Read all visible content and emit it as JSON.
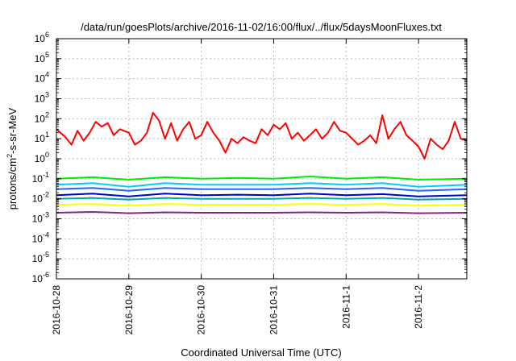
{
  "chart_data": {
    "type": "line",
    "title": "/data/run/goesPlots/archive/2016-11-02/16:00/flux/../flux/5daysMoonFluxes.txt",
    "xlabel": "Coordinated Universal Time (UTC)",
    "ylabel_parts": {
      "base": "protons/cm",
      "sup": "2",
      "rest": "-s-sr-MeV"
    },
    "y_scale": "log",
    "ylim": [
      1e-06,
      1000000.0
    ],
    "y_ticks": [
      {
        "value": 1e-06,
        "base": "10",
        "exp": "-6"
      },
      {
        "value": 1e-05,
        "base": "10",
        "exp": "-5"
      },
      {
        "value": 0.0001,
        "base": "10",
        "exp": "-4"
      },
      {
        "value": 0.001,
        "base": "10",
        "exp": "-3"
      },
      {
        "value": 0.01,
        "base": "10",
        "exp": "-2"
      },
      {
        "value": 0.1,
        "base": "10",
        "exp": "-1"
      },
      {
        "value": 1,
        "base": "10",
        "exp": "0"
      },
      {
        "value": 10,
        "base": "10",
        "exp": "1"
      },
      {
        "value": 100,
        "base": "10",
        "exp": "2"
      },
      {
        "value": 1000,
        "base": "10",
        "exp": "3"
      },
      {
        "value": 10000,
        "base": "10",
        "exp": "4"
      },
      {
        "value": 100000,
        "base": "10",
        "exp": "5"
      },
      {
        "value": 1000000,
        "base": "10",
        "exp": "6"
      }
    ],
    "x_range": [
      "2016-10-28T00:00",
      "2016-11-02T16:00"
    ],
    "x_ticks": [
      "2016-10-28",
      "2016-10-29",
      "2016-10-30",
      "2016-10-31",
      "2016-11-1",
      "2016-11-2"
    ],
    "grid": true,
    "series": [
      {
        "color": "#ff0000",
        "points": [
          [
            "2016-10-28T00:00",
            30
          ],
          [
            "2016-10-28T03:00",
            12
          ],
          [
            "2016-10-28T05:00",
            5
          ],
          [
            "2016-10-28T07:00",
            25
          ],
          [
            "2016-10-28T09:00",
            8
          ],
          [
            "2016-10-28T11:00",
            20
          ],
          [
            "2016-10-28T13:00",
            70
          ],
          [
            "2016-10-28T15:00",
            40
          ],
          [
            "2016-10-28T17:00",
            60
          ],
          [
            "2016-10-28T19:00",
            15
          ],
          [
            "2016-10-28T21:00",
            30
          ],
          [
            "2016-10-29T00:00",
            20
          ],
          [
            "2016-10-29T02:00",
            5
          ],
          [
            "2016-10-29T04:00",
            8
          ],
          [
            "2016-10-29T06:00",
            20
          ],
          [
            "2016-10-29T08:00",
            200
          ],
          [
            "2016-10-29T10:00",
            80
          ],
          [
            "2016-10-29T12:00",
            10
          ],
          [
            "2016-10-29T14:00",
            60
          ],
          [
            "2016-10-29T16:00",
            8
          ],
          [
            "2016-10-29T18:00",
            30
          ],
          [
            "2016-10-29T20:00",
            70
          ],
          [
            "2016-10-29T22:00",
            10
          ],
          [
            "2016-10-30T00:00",
            15
          ],
          [
            "2016-10-30T02:00",
            70
          ],
          [
            "2016-10-30T04:00",
            20
          ],
          [
            "2016-10-30T06:00",
            8
          ],
          [
            "2016-10-30T08:00",
            2
          ],
          [
            "2016-10-30T10:00",
            10
          ],
          [
            "2016-10-30T12:00",
            6
          ],
          [
            "2016-10-30T14:00",
            12
          ],
          [
            "2016-10-30T16:00",
            8
          ],
          [
            "2016-10-30T18:00",
            6
          ],
          [
            "2016-10-30T20:00",
            30
          ],
          [
            "2016-10-30T22:00",
            15
          ],
          [
            "2016-10-31T00:00",
            50
          ],
          [
            "2016-10-31T02:00",
            30
          ],
          [
            "2016-10-31T04:00",
            60
          ],
          [
            "2016-10-31T06:00",
            10
          ],
          [
            "2016-10-31T08:00",
            20
          ],
          [
            "2016-10-31T10:00",
            8
          ],
          [
            "2016-10-31T12:00",
            15
          ],
          [
            "2016-10-31T14:00",
            30
          ],
          [
            "2016-10-31T16:00",
            10
          ],
          [
            "2016-10-31T18:00",
            20
          ],
          [
            "2016-10-31T20:00",
            70
          ],
          [
            "2016-10-31T22:00",
            25
          ],
          [
            "2016-11-01T00:00",
            20
          ],
          [
            "2016-11-01T02:00",
            10
          ],
          [
            "2016-11-01T04:00",
            5
          ],
          [
            "2016-11-01T06:00",
            8
          ],
          [
            "2016-11-01T08:00",
            15
          ],
          [
            "2016-11-01T10:00",
            6
          ],
          [
            "2016-11-01T12:00",
            150
          ],
          [
            "2016-11-01T14:00",
            10
          ],
          [
            "2016-11-01T16:00",
            30
          ],
          [
            "2016-11-01T18:00",
            70
          ],
          [
            "2016-11-01T20:00",
            15
          ],
          [
            "2016-11-01T22:00",
            8
          ],
          [
            "2016-11-02T00:00",
            4
          ],
          [
            "2016-11-02T02:00",
            1
          ],
          [
            "2016-11-02T04:00",
            10
          ],
          [
            "2016-11-02T06:00",
            5
          ],
          [
            "2016-11-02T08:00",
            3
          ],
          [
            "2016-11-02T10:00",
            8
          ],
          [
            "2016-11-02T12:00",
            70
          ],
          [
            "2016-11-02T14:00",
            10
          ],
          [
            "2016-11-02T16:00",
            8
          ]
        ]
      },
      {
        "color": "#00ee00",
        "points": [
          [
            "2016-10-28T00:00",
            0.1
          ],
          [
            "2016-10-28T12:00",
            0.12
          ],
          [
            "2016-10-29T00:00",
            0.09
          ],
          [
            "2016-10-29T12:00",
            0.12
          ],
          [
            "2016-10-30T00:00",
            0.1
          ],
          [
            "2016-10-30T12:00",
            0.11
          ],
          [
            "2016-10-31T00:00",
            0.1
          ],
          [
            "2016-10-31T12:00",
            0.13
          ],
          [
            "2016-11-01T00:00",
            0.1
          ],
          [
            "2016-11-01T12:00",
            0.12
          ],
          [
            "2016-11-02T00:00",
            0.09
          ],
          [
            "2016-11-02T16:00",
            0.1
          ]
        ]
      },
      {
        "color": "#00ccff",
        "points": [
          [
            "2016-10-28T00:00",
            0.05
          ],
          [
            "2016-10-28T12:00",
            0.06
          ],
          [
            "2016-10-29T00:00",
            0.04
          ],
          [
            "2016-10-29T12:00",
            0.06
          ],
          [
            "2016-10-30T00:00",
            0.05
          ],
          [
            "2016-10-30T12:00",
            0.05
          ],
          [
            "2016-10-31T00:00",
            0.05
          ],
          [
            "2016-10-31T12:00",
            0.06
          ],
          [
            "2016-11-01T00:00",
            0.05
          ],
          [
            "2016-11-01T12:00",
            0.06
          ],
          [
            "2016-11-02T00:00",
            0.04
          ],
          [
            "2016-11-02T16:00",
            0.05
          ]
        ]
      },
      {
        "color": "#2266ff",
        "points": [
          [
            "2016-10-28T00:00",
            0.03
          ],
          [
            "2016-10-28T12:00",
            0.035
          ],
          [
            "2016-10-29T00:00",
            0.025
          ],
          [
            "2016-10-29T12:00",
            0.035
          ],
          [
            "2016-10-30T00:00",
            0.03
          ],
          [
            "2016-10-30T12:00",
            0.03
          ],
          [
            "2016-10-31T00:00",
            0.03
          ],
          [
            "2016-10-31T12:00",
            0.035
          ],
          [
            "2016-11-01T00:00",
            0.03
          ],
          [
            "2016-11-01T12:00",
            0.035
          ],
          [
            "2016-11-02T00:00",
            0.025
          ],
          [
            "2016-11-02T16:00",
            0.03
          ]
        ]
      },
      {
        "color": "#0000cc",
        "points": [
          [
            "2016-10-28T00:00",
            0.015
          ],
          [
            "2016-10-28T12:00",
            0.018
          ],
          [
            "2016-10-29T00:00",
            0.013
          ],
          [
            "2016-10-29T12:00",
            0.018
          ],
          [
            "2016-10-30T00:00",
            0.015
          ],
          [
            "2016-10-30T12:00",
            0.016
          ],
          [
            "2016-10-31T00:00",
            0.015
          ],
          [
            "2016-10-31T12:00",
            0.018
          ],
          [
            "2016-11-01T00:00",
            0.015
          ],
          [
            "2016-11-01T12:00",
            0.017
          ],
          [
            "2016-11-02T00:00",
            0.013
          ],
          [
            "2016-11-02T16:00",
            0.015
          ]
        ]
      },
      {
        "color": "#00aaaa",
        "points": [
          [
            "2016-10-28T00:00",
            0.01
          ],
          [
            "2016-10-28T12:00",
            0.011
          ],
          [
            "2016-10-29T00:00",
            0.009
          ],
          [
            "2016-10-29T12:00",
            0.011
          ],
          [
            "2016-10-30T00:00",
            0.01
          ],
          [
            "2016-10-30T12:00",
            0.01
          ],
          [
            "2016-10-31T00:00",
            0.01
          ],
          [
            "2016-10-31T12:00",
            0.011
          ],
          [
            "2016-11-01T00:00",
            0.01
          ],
          [
            "2016-11-01T12:00",
            0.011
          ],
          [
            "2016-11-02T00:00",
            0.009
          ],
          [
            "2016-11-02T16:00",
            0.01
          ]
        ]
      },
      {
        "color": "#ffff00",
        "points": [
          [
            "2016-10-28T00:00",
            0.005
          ],
          [
            "2016-10-28T12:00",
            0.0055
          ],
          [
            "2016-10-29T00:00",
            0.0045
          ],
          [
            "2016-10-29T12:00",
            0.0055
          ],
          [
            "2016-10-30T00:00",
            0.005
          ],
          [
            "2016-10-30T12:00",
            0.005
          ],
          [
            "2016-10-31T00:00",
            0.005
          ],
          [
            "2016-10-31T12:00",
            0.0055
          ],
          [
            "2016-11-01T00:00",
            0.005
          ],
          [
            "2016-11-01T12:00",
            0.0055
          ],
          [
            "2016-11-02T00:00",
            0.0045
          ],
          [
            "2016-11-02T16:00",
            0.005
          ]
        ]
      },
      {
        "color": "#882288",
        "points": [
          [
            "2016-10-28T00:00",
            0.002
          ],
          [
            "2016-10-28T12:00",
            0.0022
          ],
          [
            "2016-10-29T00:00",
            0.0019
          ],
          [
            "2016-10-29T12:00",
            0.0021
          ],
          [
            "2016-10-30T00:00",
            0.002
          ],
          [
            "2016-10-30T12:00",
            0.002
          ],
          [
            "2016-10-31T00:00",
            0.002
          ],
          [
            "2016-10-31T12:00",
            0.0021
          ],
          [
            "2016-11-01T00:00",
            0.002
          ],
          [
            "2016-11-01T12:00",
            0.0021
          ],
          [
            "2016-11-02T00:00",
            0.0019
          ],
          [
            "2016-11-02T16:00",
            0.002
          ]
        ]
      }
    ]
  }
}
